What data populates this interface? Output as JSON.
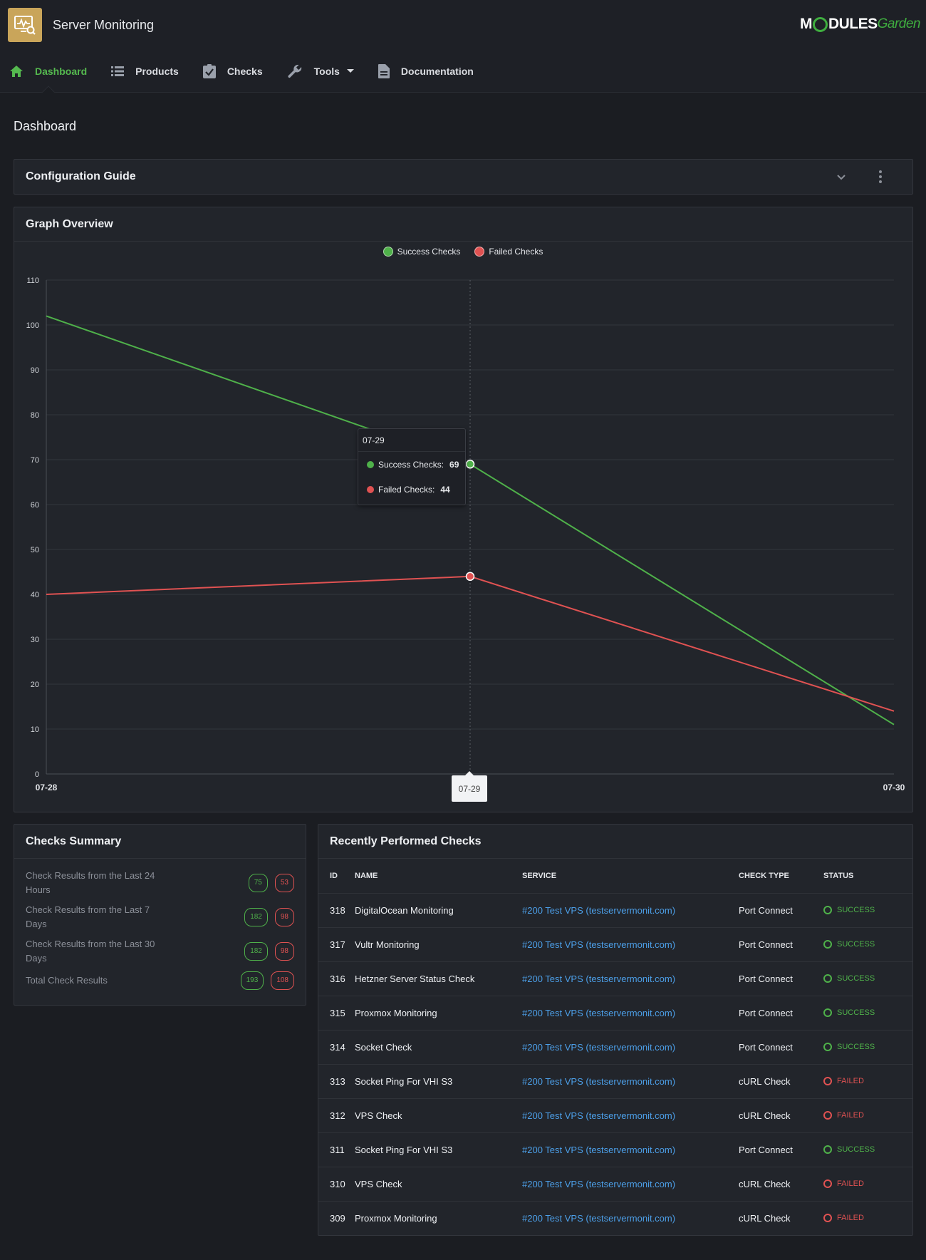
{
  "header": {
    "app_title": "Server Monitoring",
    "brand": {
      "part1": "M",
      "part2": "DULES",
      "part3": "Garden"
    },
    "app_icon": "monitor-search-icon"
  },
  "nav": {
    "items": [
      {
        "label": "Dashboard",
        "icon": "home-icon",
        "active": true
      },
      {
        "label": "Products",
        "icon": "list-icon"
      },
      {
        "label": "Checks",
        "icon": "clipboard-check-icon"
      },
      {
        "label": "Tools",
        "icon": "wrench-icon",
        "has_dropdown": true
      },
      {
        "label": "Documentation",
        "icon": "document-icon"
      }
    ]
  },
  "page": {
    "title": "Dashboard"
  },
  "config_guide": {
    "title": "Configuration Guide"
  },
  "graph": {
    "title": "Graph Overview",
    "tooltip": {
      "date": "07-29",
      "success_label": "Success Checks:",
      "success_value": "69",
      "failed_label": "Failed Checks:",
      "failed_value": "44"
    },
    "x_tooltip": "07-29"
  },
  "chart_data": {
    "type": "line",
    "x": [
      "07-28",
      "07-29",
      "07-30"
    ],
    "series": [
      {
        "name": "Success Checks",
        "values": [
          102,
          69,
          11
        ],
        "color": "#4fb14a"
      },
      {
        "name": "Failed Checks",
        "values": [
          40,
          44,
          14
        ],
        "color": "#e05252"
      }
    ],
    "ylim": [
      0,
      110
    ],
    "yticks": [
      0,
      10,
      20,
      30,
      40,
      50,
      60,
      70,
      80,
      90,
      100,
      110
    ],
    "grid": true,
    "legend": "top-center"
  },
  "summary": {
    "title": "Checks Summary",
    "rows": [
      {
        "label": "Check Results from the Last 24 Hours",
        "success": "75",
        "failed": "53"
      },
      {
        "label": "Check Results from the Last 7 Days",
        "success": "182",
        "failed": "98"
      },
      {
        "label": "Check Results from the Last 30 Days",
        "success": "182",
        "failed": "98"
      },
      {
        "label": "Total Check Results",
        "success": "193",
        "failed": "108"
      }
    ]
  },
  "recent": {
    "title": "Recently Performed Checks",
    "columns": [
      "ID",
      "NAME",
      "SERVICE",
      "CHECK TYPE",
      "STATUS"
    ],
    "rows": [
      {
        "id": "318",
        "name": "DigitalOcean Monitoring",
        "service": "#200 Test VPS (testservermonit.com)",
        "type": "Port Connect",
        "status": "SUCCESS"
      },
      {
        "id": "317",
        "name": "Vultr Monitoring",
        "service": "#200 Test VPS (testservermonit.com)",
        "type": "Port Connect",
        "status": "SUCCESS"
      },
      {
        "id": "316",
        "name": "Hetzner Server Status Check",
        "service": "#200 Test VPS (testservermonit.com)",
        "type": "Port Connect",
        "status": "SUCCESS"
      },
      {
        "id": "315",
        "name": "Proxmox Monitoring",
        "service": "#200 Test VPS (testservermonit.com)",
        "type": "Port Connect",
        "status": "SUCCESS"
      },
      {
        "id": "314",
        "name": "Socket Check",
        "service": "#200 Test VPS (testservermonit.com)",
        "type": "Port Connect",
        "status": "SUCCESS"
      },
      {
        "id": "313",
        "name": "Socket Ping For VHI S3",
        "service": "#200 Test VPS (testservermonit.com)",
        "type": "cURL Check",
        "status": "FAILED"
      },
      {
        "id": "312",
        "name": "VPS Check",
        "service": "#200 Test VPS (testservermonit.com)",
        "type": "cURL Check",
        "status": "FAILED"
      },
      {
        "id": "311",
        "name": "Socket Ping For VHI S3",
        "service": "#200 Test VPS (testservermonit.com)",
        "type": "Port Connect",
        "status": "SUCCESS"
      },
      {
        "id": "310",
        "name": "VPS Check",
        "service": "#200 Test VPS (testservermonit.com)",
        "type": "cURL Check",
        "status": "FAILED"
      },
      {
        "id": "309",
        "name": "Proxmox Monitoring",
        "service": "#200 Test VPS (testservermonit.com)",
        "type": "cURL Check",
        "status": "FAILED"
      }
    ]
  },
  "colors": {
    "accent": "#55b94f",
    "success": "#4fb14a",
    "failed": "#e05252",
    "link": "#4c9fe8",
    "icon_bg": "#c9a55a"
  }
}
